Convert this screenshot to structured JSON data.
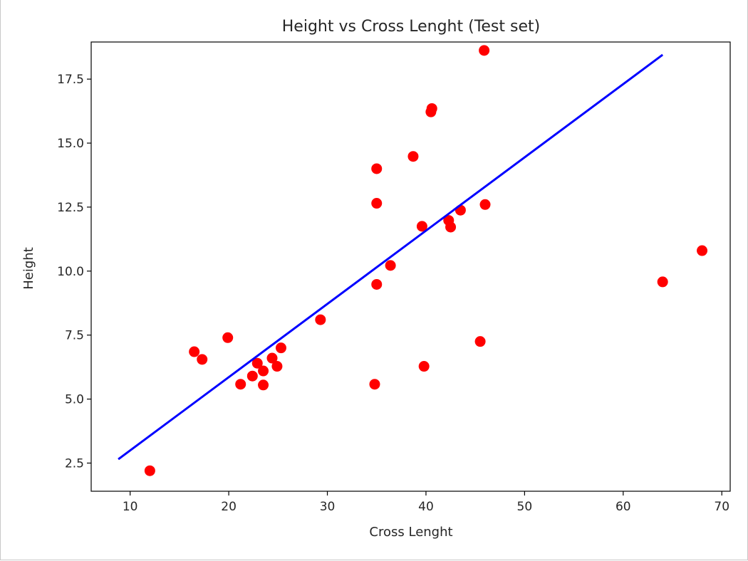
{
  "chart_data": {
    "type": "scatter",
    "title": "Height vs Cross Lenght (Test set)",
    "xlabel": "Cross Lenght",
    "ylabel": "Height",
    "xlim": [
      6.05,
      70.85
    ],
    "ylim": [
      1.4,
      18.95
    ],
    "xticks": [
      10,
      20,
      30,
      40,
      50,
      60,
      70
    ],
    "yticks": [
      2.5,
      5.0,
      7.5,
      10.0,
      12.5,
      15.0,
      17.5
    ],
    "xtick_labels": [
      "10",
      "20",
      "30",
      "40",
      "50",
      "60",
      "70"
    ],
    "ytick_labels": [
      "2.5",
      "5.0",
      "7.5",
      "10.0",
      "12.5",
      "15.0",
      "17.5"
    ],
    "grid": false,
    "series": [
      {
        "kind": "scatter",
        "color": "#ff0000",
        "points": [
          [
            12.0,
            2.2
          ],
          [
            16.5,
            6.85
          ],
          [
            17.3,
            6.55
          ],
          [
            19.9,
            7.4
          ],
          [
            21.2,
            5.58
          ],
          [
            22.4,
            5.9
          ],
          [
            22.9,
            6.4
          ],
          [
            23.5,
            6.1
          ],
          [
            23.5,
            5.55
          ],
          [
            24.4,
            6.6
          ],
          [
            24.9,
            6.28
          ],
          [
            25.3,
            7.0
          ],
          [
            29.3,
            8.1
          ],
          [
            34.8,
            5.58
          ],
          [
            35.0,
            14.0
          ],
          [
            35.0,
            12.65
          ],
          [
            35.0,
            9.48
          ],
          [
            36.4,
            10.22
          ],
          [
            38.7,
            14.48
          ],
          [
            39.6,
            11.75
          ],
          [
            39.8,
            6.28
          ],
          [
            40.5,
            16.22
          ],
          [
            40.6,
            16.35
          ],
          [
            42.3,
            11.98
          ],
          [
            42.5,
            11.72
          ],
          [
            43.5,
            12.38
          ],
          [
            45.5,
            7.25
          ],
          [
            45.9,
            18.62
          ],
          [
            46.0,
            12.6
          ],
          [
            64.0,
            9.58
          ],
          [
            68.0,
            10.8
          ]
        ]
      },
      {
        "kind": "line",
        "color": "#0000ff",
        "points": [
          [
            8.8,
            2.65
          ],
          [
            64.0,
            18.45
          ]
        ]
      }
    ]
  }
}
